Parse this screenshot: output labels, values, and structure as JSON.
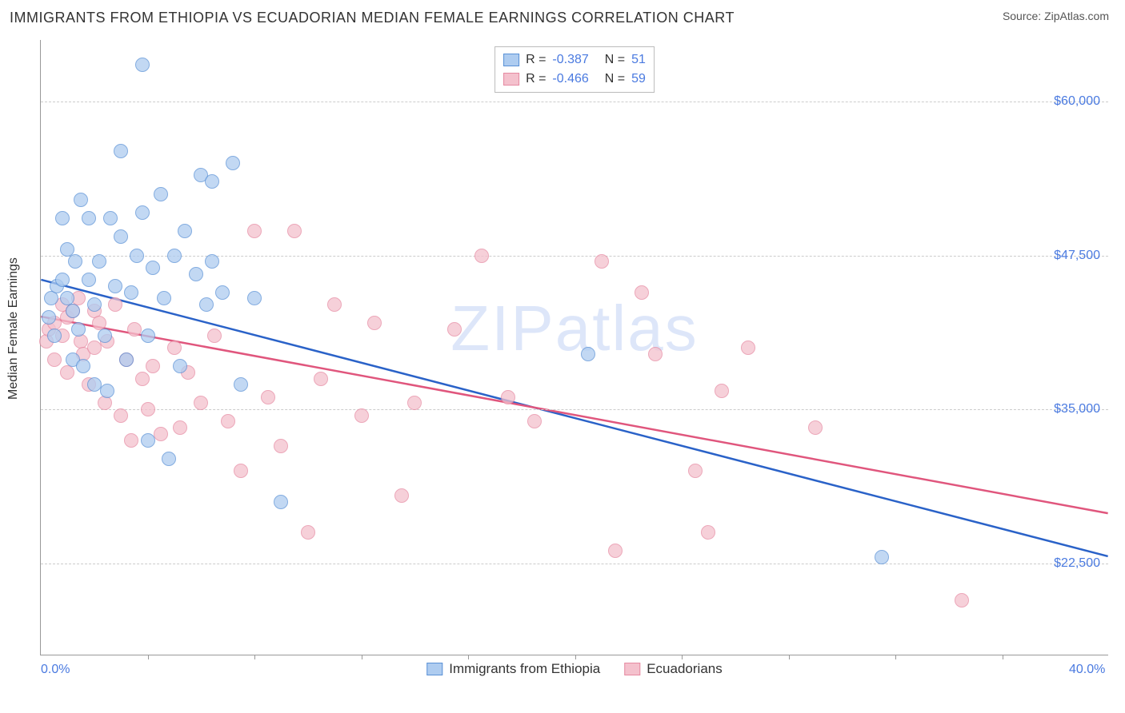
{
  "title": "IMMIGRANTS FROM ETHIOPIA VS ECUADORIAN MEDIAN FEMALE EARNINGS CORRELATION CHART",
  "source": "Source: ZipAtlas.com",
  "watermark": "ZIPatlas",
  "ylabel": "Median Female Earnings",
  "chart": {
    "type": "scatter",
    "background_color": "#ffffff",
    "grid_color": "#cccccc",
    "axis_color": "#999999",
    "xlim": [
      0,
      40
    ],
    "ylim": [
      15000,
      65000
    ],
    "yticks": [
      {
        "value": 22500,
        "label": "$22,500"
      },
      {
        "value": 35000,
        "label": "$35,000"
      },
      {
        "value": 47500,
        "label": "$47,500"
      },
      {
        "value": 60000,
        "label": "$60,000"
      }
    ],
    "xticks_minor": [
      4,
      8,
      12,
      16,
      20,
      24,
      28,
      32,
      36
    ],
    "xticks": [
      {
        "value": 0,
        "label": "0.0%"
      },
      {
        "value": 40,
        "label": "40.0%"
      }
    ],
    "marker_radius": 9,
    "marker_opacity": 0.75
  },
  "legend_top": {
    "rows": [
      {
        "swatch_fill": "#aeccf0",
        "swatch_border": "#5a91d6",
        "r": "-0.387",
        "n": "51"
      },
      {
        "swatch_fill": "#f4c1cd",
        "swatch_border": "#e68aa2",
        "r": "-0.466",
        "n": "59"
      }
    ],
    "r_label": "R =",
    "n_label": "N ="
  },
  "legend_bottom": {
    "items": [
      {
        "swatch_fill": "#aeccf0",
        "swatch_border": "#5a91d6",
        "label": "Immigrants from Ethiopia"
      },
      {
        "swatch_fill": "#f4c1cd",
        "swatch_border": "#e68aa2",
        "label": "Ecuadorians"
      }
    ]
  },
  "series": {
    "ethiopia": {
      "fill": "#aeccf0",
      "border": "#5a91d6",
      "trend_color": "#2a62c8",
      "trend": {
        "x1": 0,
        "y1": 45500,
        "x2": 40,
        "y2": 23000
      },
      "points": [
        [
          0.3,
          42500
        ],
        [
          0.4,
          44000
        ],
        [
          0.5,
          41000
        ],
        [
          0.6,
          45000
        ],
        [
          0.8,
          50500
        ],
        [
          0.8,
          45500
        ],
        [
          1.0,
          44000
        ],
        [
          1.0,
          48000
        ],
        [
          1.2,
          43000
        ],
        [
          1.2,
          39000
        ],
        [
          1.3,
          47000
        ],
        [
          1.4,
          41500
        ],
        [
          1.5,
          52000
        ],
        [
          1.6,
          38500
        ],
        [
          1.8,
          45500
        ],
        [
          1.8,
          50500
        ],
        [
          2.0,
          43500
        ],
        [
          2.0,
          37000
        ],
        [
          2.2,
          47000
        ],
        [
          2.4,
          41000
        ],
        [
          2.5,
          36500
        ],
        [
          2.6,
          50500
        ],
        [
          2.8,
          45000
        ],
        [
          3.0,
          56000
        ],
        [
          3.0,
          49000
        ],
        [
          3.2,
          39000
        ],
        [
          3.4,
          44500
        ],
        [
          3.6,
          47500
        ],
        [
          3.8,
          63000
        ],
        [
          3.8,
          51000
        ],
        [
          4.0,
          41000
        ],
        [
          4.0,
          32500
        ],
        [
          4.2,
          46500
        ],
        [
          4.5,
          52500
        ],
        [
          4.6,
          44000
        ],
        [
          4.8,
          31000
        ],
        [
          5.0,
          47500
        ],
        [
          5.2,
          38500
        ],
        [
          5.4,
          49500
        ],
        [
          5.8,
          46000
        ],
        [
          6.0,
          54000
        ],
        [
          6.2,
          43500
        ],
        [
          6.4,
          47000
        ],
        [
          6.4,
          53500
        ],
        [
          6.8,
          44500
        ],
        [
          7.2,
          55000
        ],
        [
          7.5,
          37000
        ],
        [
          8.0,
          44000
        ],
        [
          9.0,
          27500
        ],
        [
          20.5,
          39500
        ],
        [
          31.5,
          23000
        ]
      ]
    },
    "ecuadorians": {
      "fill": "#f4c1cd",
      "border": "#e68aa2",
      "trend_color": "#e0567d",
      "trend": {
        "x1": 0,
        "y1": 42500,
        "x2": 40,
        "y2": 26500
      },
      "points": [
        [
          0.2,
          40500
        ],
        [
          0.3,
          41500
        ],
        [
          0.5,
          42000
        ],
        [
          0.5,
          39000
        ],
        [
          0.8,
          43500
        ],
        [
          0.8,
          41000
        ],
        [
          1.0,
          42500
        ],
        [
          1.0,
          38000
        ],
        [
          1.2,
          43000
        ],
        [
          1.4,
          44000
        ],
        [
          1.5,
          40500
        ],
        [
          1.6,
          39500
        ],
        [
          1.8,
          37000
        ],
        [
          2.0,
          43000
        ],
        [
          2.0,
          40000
        ],
        [
          2.2,
          42000
        ],
        [
          2.4,
          35500
        ],
        [
          2.5,
          40500
        ],
        [
          2.8,
          43500
        ],
        [
          3.0,
          34500
        ],
        [
          3.2,
          39000
        ],
        [
          3.4,
          32500
        ],
        [
          3.5,
          41500
        ],
        [
          3.8,
          37500
        ],
        [
          4.0,
          35000
        ],
        [
          4.2,
          38500
        ],
        [
          4.5,
          33000
        ],
        [
          5.0,
          40000
        ],
        [
          5.2,
          33500
        ],
        [
          5.5,
          38000
        ],
        [
          6.0,
          35500
        ],
        [
          6.5,
          41000
        ],
        [
          7.0,
          34000
        ],
        [
          7.5,
          30000
        ],
        [
          8.0,
          49500
        ],
        [
          8.5,
          36000
        ],
        [
          9.0,
          32000
        ],
        [
          9.5,
          49500
        ],
        [
          10.0,
          25000
        ],
        [
          10.5,
          37500
        ],
        [
          11.0,
          43500
        ],
        [
          12.0,
          34500
        ],
        [
          12.5,
          42000
        ],
        [
          13.5,
          28000
        ],
        [
          14.0,
          35500
        ],
        [
          15.5,
          41500
        ],
        [
          16.5,
          47500
        ],
        [
          17.5,
          36000
        ],
        [
          18.5,
          34000
        ],
        [
          21.0,
          47000
        ],
        [
          21.5,
          23500
        ],
        [
          22.5,
          44500
        ],
        [
          23.0,
          39500
        ],
        [
          24.5,
          30000
        ],
        [
          25.0,
          25000
        ],
        [
          25.5,
          36500
        ],
        [
          26.5,
          40000
        ],
        [
          29.0,
          33500
        ],
        [
          34.5,
          19500
        ]
      ]
    }
  }
}
